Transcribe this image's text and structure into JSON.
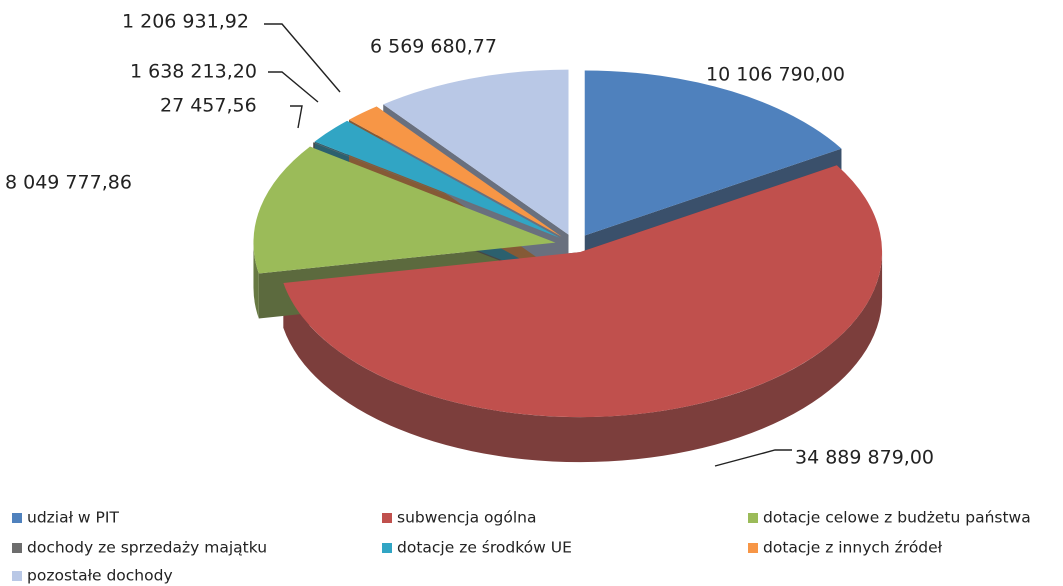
{
  "chart_data": {
    "type": "pie",
    "categories": [
      "udział w PIT",
      "subwencja ogólna",
      "dotacje celowe z budżetu państwa",
      "dochody ze sprzedaży majątku",
      "dotacje ze środków UE",
      "dotacje z innych źródeł",
      "pozostałe dochody"
    ],
    "values": [
      10106790.0,
      34889879.0,
      8049777.86,
      27457.56,
      1638213.2,
      1206931.92,
      6569680.77
    ],
    "value_labels": [
      "10 106 790,00",
      "34 889 879,00",
      "8 049 777,86",
      "27 457,56",
      "1 638 213,20",
      "1 206 931,92",
      "6 569 680,77"
    ],
    "colors": [
      "#4f81bd",
      "#c0504d",
      "#9bbb59",
      "#6d6d6d",
      "#31a5c4",
      "#f79646",
      "#b9c8e6"
    ],
    "legend": "bottom"
  }
}
